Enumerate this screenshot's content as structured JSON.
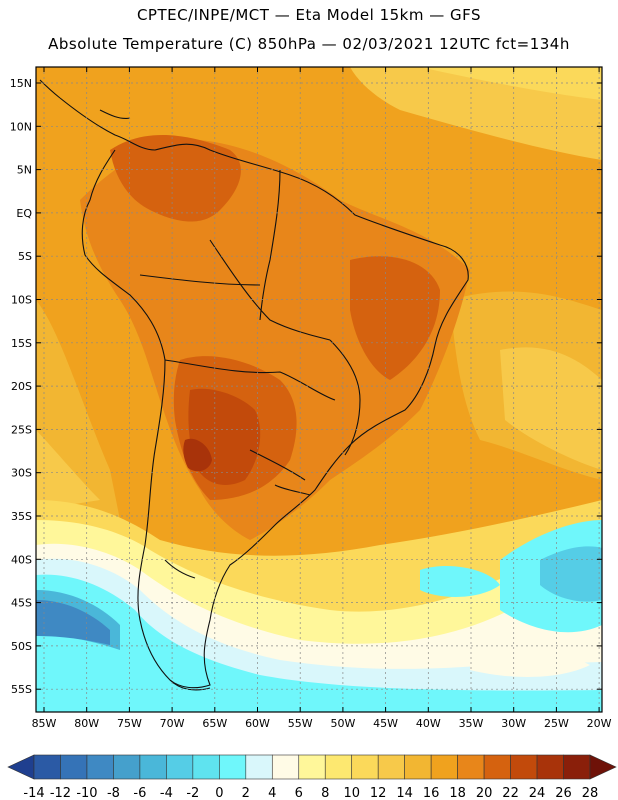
{
  "header": {
    "line1": "CPTEC/INPE/MCT —  Eta Model 15km — GFS",
    "line2": "Absolute Temperature (C) 850hPa — 02/03/2021 12UTC fct=134h"
  },
  "map": {
    "lat_ticks": [
      "15N",
      "10N",
      "5N",
      "EQ",
      "5S",
      "10S",
      "15S",
      "20S",
      "25S",
      "30S",
      "35S",
      "40S",
      "45S",
      "50S",
      "55S"
    ],
    "lon_ticks": [
      "85W",
      "80W",
      "75W",
      "70W",
      "65W",
      "60W",
      "55W",
      "50W",
      "45W",
      "40W",
      "35W",
      "30W",
      "25W",
      "20W"
    ]
  },
  "colorbar": {
    "labels": [
      "-14",
      "-12",
      "-10",
      "-8",
      "-6",
      "-4",
      "-2",
      "0",
      "2",
      "4",
      "6",
      "8",
      "10",
      "12",
      "14",
      "16",
      "18",
      "20",
      "22",
      "24",
      "26",
      "28"
    ],
    "colors": [
      "#1f3f8f",
      "#2b5aa5",
      "#3573b7",
      "#3f89c3",
      "#45a0cc",
      "#4ab7d9",
      "#55cde6",
      "#5fe3ef",
      "#6ff7fb",
      "#d9f7fb",
      "#fffbe6",
      "#fff79a",
      "#fde870",
      "#fbd95a",
      "#f7c94a",
      "#f2b632",
      "#f0a21e",
      "#e8861a",
      "#d5620f",
      "#c24a0b",
      "#a8330a",
      "#8a1f0a",
      "#6e1208"
    ]
  }
}
